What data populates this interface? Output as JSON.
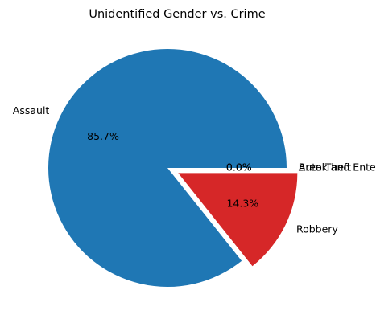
{
  "chart_data": {
    "type": "pie",
    "title": "Unidentified Gender vs. Crime",
    "slices": [
      {
        "label": "Assault",
        "value": 85.7,
        "pct_label": "85.7%",
        "color": "#1f77b4",
        "exploded": false
      },
      {
        "label": "Robbery",
        "value": 14.3,
        "pct_label": "14.3%",
        "color": "#d62728",
        "exploded": true
      },
      {
        "label": "Break and Enter",
        "value": 0.0,
        "pct_label": "0.0%",
        "color": "#2ca02c",
        "exploded": false
      },
      {
        "label": "Auto Theft",
        "value": 0.0,
        "pct_label": "0.0%",
        "color": "#ff7f0e",
        "exploded": false
      }
    ],
    "start_angle": 0,
    "direction": "counterclockwise",
    "legend": "none"
  }
}
